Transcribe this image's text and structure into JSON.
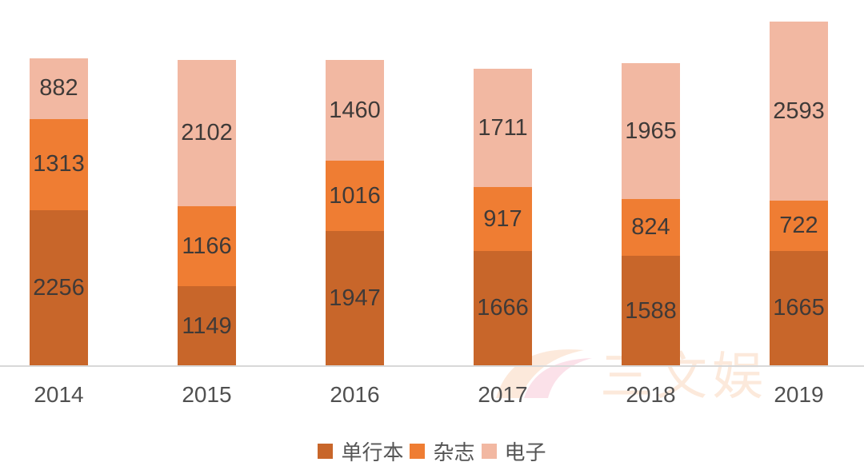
{
  "chart_data": {
    "type": "bar",
    "stacked": true,
    "title": "",
    "xlabel": "",
    "ylabel": "",
    "categories": [
      "2014",
      "2015",
      "2016",
      "2017",
      "2018",
      "2019"
    ],
    "series": [
      {
        "name": "单行本",
        "color": "#c8662a",
        "values": [
          2256,
          1149,
          1947,
          1666,
          1588,
          1665
        ]
      },
      {
        "name": "杂志",
        "color": "#ef7d33",
        "values": [
          1313,
          1166,
          1016,
          917,
          824,
          722
        ]
      },
      {
        "name": "电子",
        "color": "#f2b8a2",
        "values": [
          882,
          2102,
          1460,
          1711,
          1965,
          2593
        ]
      }
    ],
    "data_labels": true,
    "legend_position": "bottom",
    "grid": false,
    "ylim": [
      0,
      5000
    ]
  },
  "legend": {
    "items": [
      {
        "label": "单行本",
        "color": "#c8662a"
      },
      {
        "label": "杂志",
        "color": "#ef7d33"
      },
      {
        "label": "电子",
        "color": "#f2b8a2"
      }
    ]
  },
  "watermark": {
    "text": "三文娱"
  }
}
